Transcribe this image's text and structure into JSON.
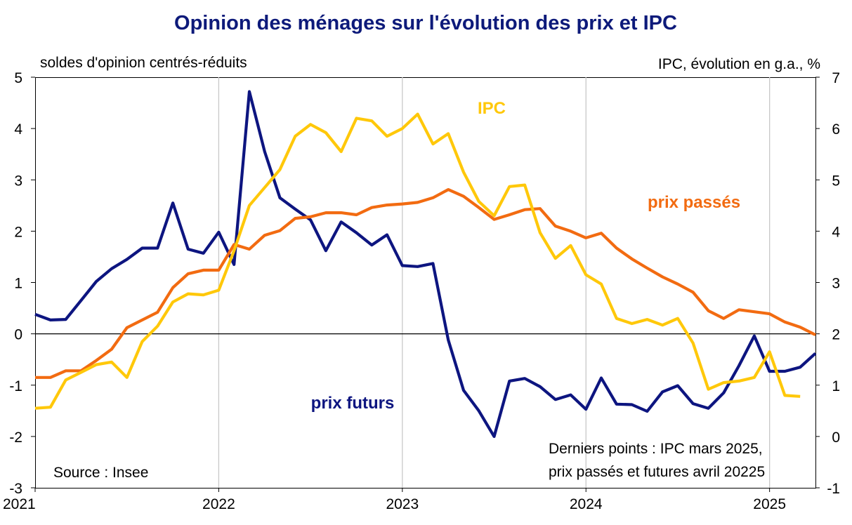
{
  "chart_data": {
    "type": "line",
    "title": "Opinion des ménages sur l'évolution des prix et IPC",
    "y_left_label": "soldes d'opinion centrés-réduits",
    "y_right_label": "IPC, évolution en g.a., %",
    "y_left_range": [
      -3,
      5
    ],
    "y_right_range": [
      -1,
      7
    ],
    "y_left_ticks": [
      "-3",
      "-2",
      "-1",
      "0",
      "1",
      "2",
      "3",
      "4",
      "5"
    ],
    "y_right_ticks": [
      "-1",
      "0",
      "1",
      "2",
      "3",
      "4",
      "5",
      "6",
      "7"
    ],
    "x_range": [
      "2021-01",
      "2025-04"
    ],
    "x_ticks": [
      "2021",
      "2022",
      "2023",
      "2024",
      "2025"
    ],
    "grid": "vertical lines at each year, horizontal zero line",
    "source": "Source : Insee",
    "note_line1": "Derniers points : IPC mars 2025,",
    "note_line2": "prix passés et futures avril 20225",
    "series": [
      {
        "name": "prix futurs",
        "axis": "left",
        "color": "#0d1580",
        "start": "2021-01",
        "values": [
          0.38,
          0.27,
          0.28,
          0.65,
          1.02,
          1.27,
          1.45,
          1.67,
          1.67,
          2.55,
          1.65,
          1.57,
          1.98,
          1.35,
          4.72,
          3.55,
          2.65,
          2.43,
          2.22,
          1.62,
          2.18,
          1.97,
          1.73,
          1.93,
          1.33,
          1.31,
          1.37,
          -0.12,
          -1.1,
          -1.5,
          -2.0,
          -0.92,
          -0.87,
          -1.03,
          -1.28,
          -1.19,
          -1.47,
          -0.86,
          -1.37,
          -1.38,
          -1.51,
          -1.13,
          -1.01,
          -1.36,
          -1.45,
          -1.15,
          -0.62,
          -0.04,
          -0.73,
          -0.73,
          -0.65,
          -0.38
        ]
      },
      {
        "name": "prix passés",
        "axis": "left",
        "color": "#f26b11",
        "start": "2021-01",
        "values": [
          -0.85,
          -0.85,
          -0.72,
          -0.72,
          -0.52,
          -0.3,
          0.12,
          0.27,
          0.42,
          0.9,
          1.17,
          1.24,
          1.24,
          1.74,
          1.65,
          1.92,
          2.01,
          2.25,
          2.28,
          2.36,
          2.36,
          2.32,
          2.46,
          2.51,
          2.53,
          2.56,
          2.65,
          2.81,
          2.68,
          2.46,
          2.23,
          2.32,
          2.42,
          2.44,
          2.1,
          2.0,
          1.87,
          1.96,
          1.67,
          1.46,
          1.28,
          1.11,
          0.97,
          0.81,
          0.45,
          0.3,
          0.47,
          0.43,
          0.39,
          0.23,
          0.13,
          -0.02
        ]
      },
      {
        "name": "IPC",
        "axis": "right",
        "color": "#ffc80a",
        "start": "2021-01",
        "values": [
          0.55,
          0.57,
          1.1,
          1.25,
          1.4,
          1.45,
          1.15,
          1.85,
          2.15,
          2.62,
          2.78,
          2.76,
          2.85,
          3.62,
          4.5,
          4.85,
          5.2,
          5.85,
          6.08,
          5.92,
          5.55,
          6.2,
          6.15,
          5.85,
          6.0,
          6.28,
          5.7,
          5.9,
          5.15,
          4.58,
          4.3,
          4.87,
          4.9,
          3.97,
          3.47,
          3.72,
          3.15,
          2.97,
          2.3,
          2.2,
          2.28,
          2.17,
          2.3,
          1.82,
          0.92,
          1.05,
          1.08,
          1.15,
          1.65,
          0.8,
          0.78
        ]
      }
    ]
  }
}
